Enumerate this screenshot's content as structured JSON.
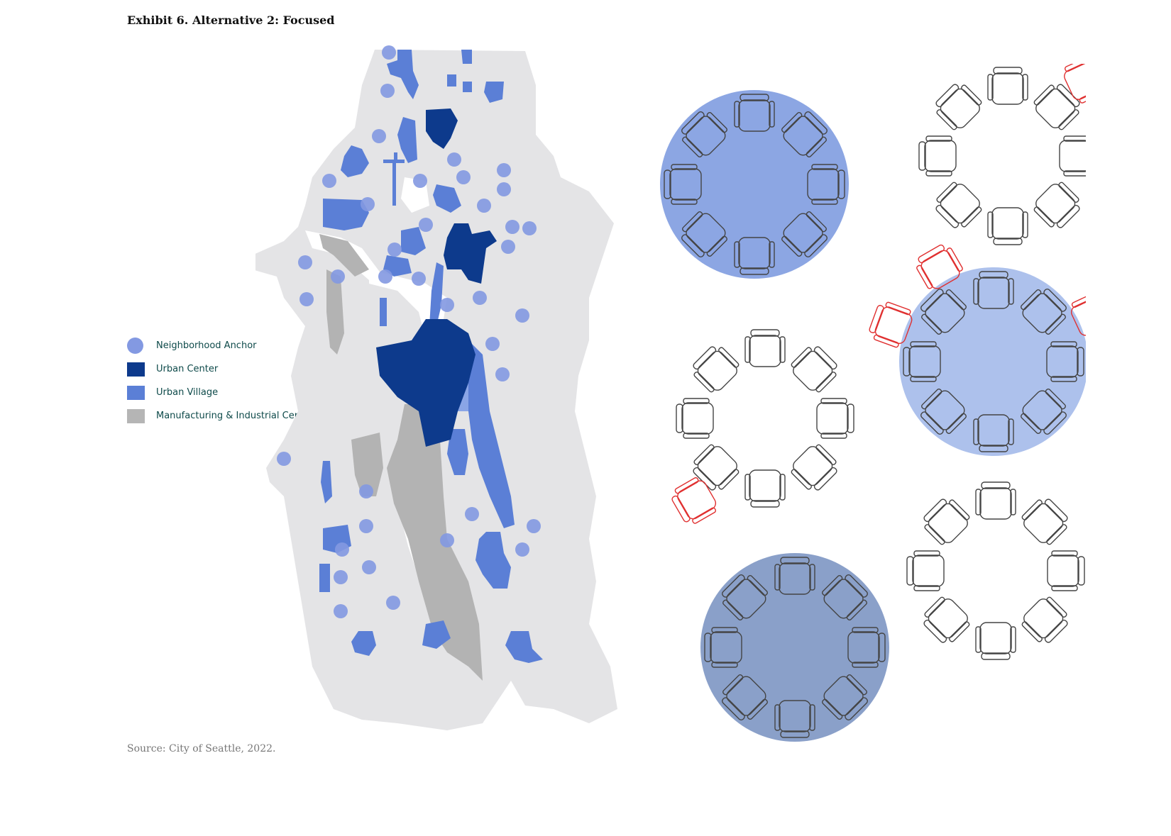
{
  "title": "Exhibit 6. Alternative 2: Focused",
  "source": "Source: City of Seattle, 2022.",
  "legend": [
    {
      "label": "Neighborhood Anchor",
      "color": "#7f96e0",
      "shape": "circle"
    },
    {
      "label": "Urban Center",
      "color": "#0d3a8c",
      "shape": "square"
    },
    {
      "label": "Urban Village",
      "color": "#5b7fd6",
      "shape": "square"
    },
    {
      "label": "Manufacturing & Industrial Center",
      "color": "#b5b5b5",
      "shape": "square"
    }
  ],
  "colors": {
    "land": "#e4e4e6",
    "water": "#ffffff",
    "anchor": "#8399e2",
    "urban_center": "#0d3a8c",
    "urban_village": "#5b7fd6",
    "industrial": "#b3b3b3",
    "table_blue": "#8ca6e3",
    "table_light": "#adc1ec",
    "table_dark": "#8aa0c9",
    "chair_stroke": "#444444",
    "extra_chair": "#e03030"
  }
}
